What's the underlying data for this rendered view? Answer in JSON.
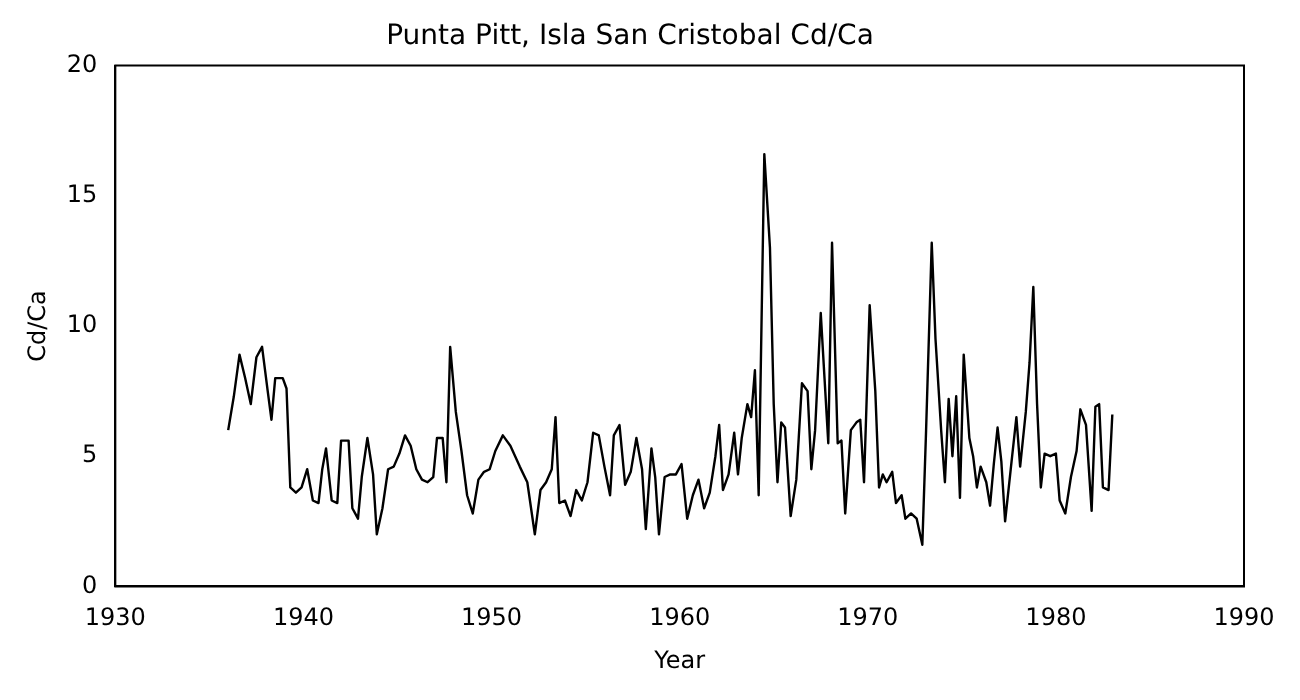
{
  "chart_data": {
    "type": "line",
    "title": "Punta Pitt, Isla San Cristobal Cd/Ca",
    "xlabel": "Year",
    "ylabel": "Cd/Ca",
    "xlim": [
      1930,
      1990
    ],
    "xticks": [
      1930,
      1940,
      1950,
      1960,
      1970,
      1980,
      1990
    ],
    "ylim": [
      0,
      20
    ],
    "yticks": [
      0,
      5,
      10,
      15,
      20
    ],
    "grid": false,
    "legend": false,
    "marker": "none",
    "line_style": "solid",
    "series": [
      {
        "color": "#000000",
        "x": [
          1936.0,
          1936.3,
          1936.6,
          1936.9,
          1937.2,
          1937.5,
          1937.8,
          1938.1,
          1938.3,
          1938.5,
          1938.9,
          1939.1,
          1939.3,
          1939.6,
          1939.9,
          1940.2,
          1940.5,
          1940.8,
          1941.0,
          1941.2,
          1941.5,
          1941.8,
          1942.0,
          1942.4,
          1942.6,
          1942.9,
          1943.1,
          1943.4,
          1943.7,
          1943.9,
          1944.2,
          1944.5,
          1944.8,
          1945.1,
          1945.4,
          1945.7,
          1946.0,
          1946.3,
          1946.6,
          1946.9,
          1947.1,
          1947.4,
          1947.6,
          1947.8,
          1948.1,
          1948.4,
          1948.7,
          1949.0,
          1949.3,
          1949.6,
          1949.9,
          1950.2,
          1950.6,
          1951.0,
          1951.5,
          1951.9,
          1952.1,
          1952.3,
          1952.6,
          1952.9,
          1953.2,
          1953.4,
          1953.6,
          1953.9,
          1954.2,
          1954.5,
          1954.8,
          1955.1,
          1955.4,
          1955.7,
          1956.0,
          1956.3,
          1956.5,
          1956.8,
          1957.1,
          1957.4,
          1957.7,
          1958.0,
          1958.2,
          1958.5,
          1958.7,
          1958.9,
          1959.2,
          1959.5,
          1959.8,
          1960.1,
          1960.4,
          1960.7,
          1961.0,
          1961.3,
          1961.6,
          1961.9,
          1962.1,
          1962.3,
          1962.6,
          1962.9,
          1963.1,
          1963.3,
          1963.6,
          1963.8,
          1964.0,
          1964.2,
          1964.5,
          1964.8,
          1965.0,
          1965.2,
          1965.4,
          1965.6,
          1965.9,
          1966.2,
          1966.5,
          1966.8,
          1967.0,
          1967.2,
          1967.5,
          1967.7,
          1967.9,
          1968.1,
          1968.4,
          1968.6,
          1968.8,
          1969.1,
          1969.4,
          1969.6,
          1969.8,
          1970.1,
          1970.4,
          1970.6,
          1970.8,
          1971.0,
          1971.3,
          1971.5,
          1971.8,
          1972.0,
          1972.3,
          1972.6,
          1972.9,
          1973.1,
          1973.4,
          1973.6,
          1973.9,
          1974.1,
          1974.3,
          1974.5,
          1974.7,
          1974.9,
          1975.1,
          1975.4,
          1975.6,
          1975.8,
          1976.0,
          1976.3,
          1976.5,
          1976.7,
          1976.9,
          1977.1,
          1977.3,
          1977.6,
          1977.9,
          1978.1,
          1978.4,
          1978.6,
          1978.8,
          1979.0,
          1979.2,
          1979.4,
          1979.7,
          1980.0,
          1980.2,
          1980.5,
          1980.8,
          1981.1,
          1981.3,
          1981.6,
          1981.9,
          1982.1,
          1982.3,
          1982.5,
          1982.8,
          1983.0
        ],
        "values": [
          6.0,
          7.3,
          8.9,
          8.0,
          7.0,
          8.8,
          9.2,
          7.5,
          6.4,
          8.0,
          8.0,
          7.6,
          3.8,
          3.6,
          3.8,
          4.5,
          3.3,
          3.2,
          4.5,
          5.3,
          3.3,
          3.2,
          5.6,
          5.6,
          3.0,
          2.6,
          4.2,
          5.7,
          4.3,
          2.0,
          3.0,
          4.5,
          4.6,
          5.1,
          5.8,
          5.4,
          4.5,
          4.1,
          4.0,
          4.2,
          5.7,
          5.7,
          4.0,
          9.2,
          6.7,
          5.2,
          3.5,
          2.8,
          4.1,
          4.4,
          4.5,
          5.2,
          5.8,
          5.4,
          4.6,
          4.0,
          3.0,
          2.0,
          3.7,
          4.0,
          4.5,
          6.5,
          3.2,
          3.3,
          2.7,
          3.7,
          3.3,
          4.0,
          5.9,
          5.8,
          4.6,
          3.5,
          5.8,
          6.2,
          3.9,
          4.4,
          5.7,
          4.5,
          2.2,
          5.3,
          4.2,
          2.0,
          4.2,
          4.3,
          4.3,
          4.7,
          2.6,
          3.5,
          4.1,
          3.0,
          3.6,
          5.0,
          6.2,
          3.7,
          4.3,
          5.9,
          4.3,
          5.7,
          7.0,
          6.5,
          8.3,
          3.5,
          16.6,
          13.0,
          7.0,
          4.0,
          6.3,
          6.1,
          2.7,
          4.1,
          7.8,
          7.5,
          4.5,
          6.0,
          10.5,
          8.0,
          5.5,
          13.2,
          5.5,
          5.6,
          2.8,
          6.0,
          6.3,
          6.4,
          4.0,
          10.8,
          7.5,
          3.8,
          4.3,
          4.0,
          4.4,
          3.2,
          3.5,
          2.6,
          2.8,
          2.6,
          1.6,
          6.0,
          13.2,
          9.5,
          6.0,
          4.0,
          7.2,
          5.0,
          7.3,
          3.4,
          8.9,
          5.7,
          5.0,
          3.8,
          4.6,
          4.0,
          3.1,
          4.7,
          6.1,
          4.8,
          2.5,
          4.5,
          6.5,
          4.6,
          6.7,
          8.6,
          11.5,
          7.0,
          3.8,
          5.1,
          5.0,
          5.1,
          3.3,
          2.8,
          4.2,
          5.2,
          6.8,
          6.2,
          2.9,
          6.9,
          7.0,
          3.8,
          3.7,
          6.6
        ]
      }
    ]
  }
}
